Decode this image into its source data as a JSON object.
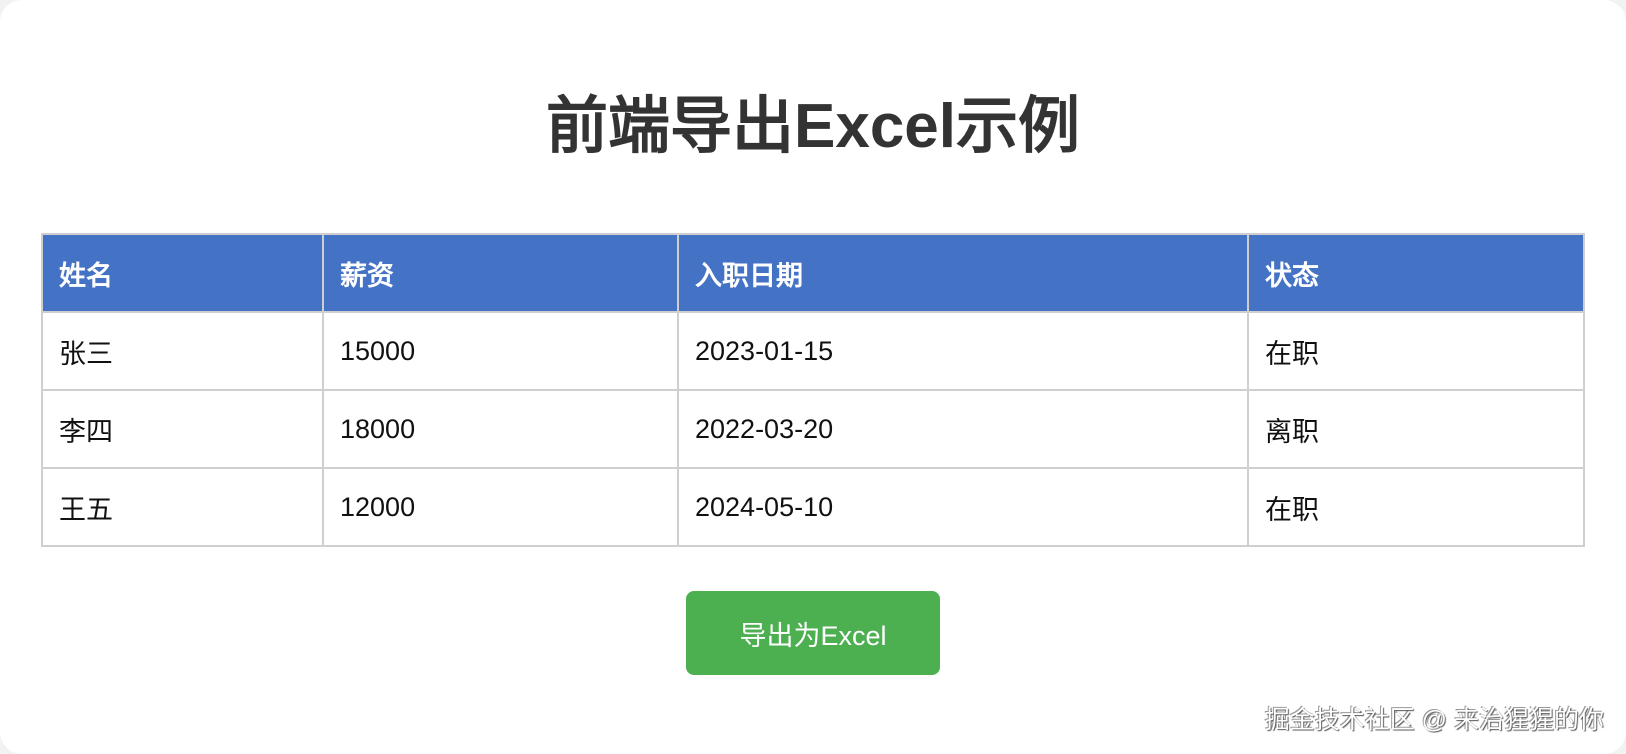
{
  "title": "前端导出Excel示例",
  "table": {
    "headers": [
      "姓名",
      "薪资",
      "入职日期",
      "状态"
    ],
    "rows": [
      [
        "张三",
        "15000",
        "2023-01-15",
        "在职"
      ],
      [
        "李四",
        "18000",
        "2022-03-20",
        "离职"
      ],
      [
        "王五",
        "12000",
        "2024-05-10",
        "在职"
      ]
    ]
  },
  "export_button": "导出为Excel",
  "watermark": "掘金技术社区 @ 来治猩猩的你",
  "colors": {
    "header": "#4472c4",
    "button": "#4caf50"
  }
}
